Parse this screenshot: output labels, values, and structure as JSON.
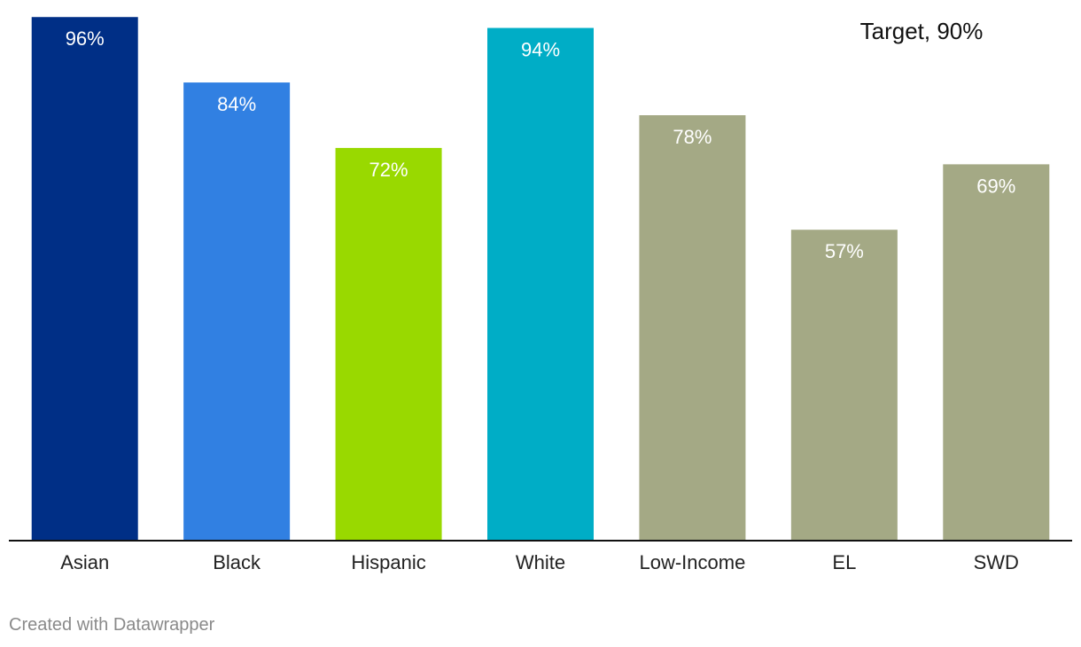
{
  "chart_data": {
    "type": "bar",
    "categories": [
      "Asian",
      "Black",
      "Hispanic",
      "White",
      "Low-Income",
      "EL",
      "SWD"
    ],
    "values": [
      96,
      84,
      72,
      94,
      78,
      57,
      69
    ],
    "value_labels": [
      "96%",
      "84%",
      "72%",
      "94%",
      "78%",
      "57%",
      "69%"
    ],
    "colors": [
      "#002f86",
      "#3180e2",
      "#99d900",
      "#00adc6",
      "#a4a985",
      "#a4a985",
      "#a4a985"
    ],
    "ylim": [
      0,
      97.5
    ],
    "target": {
      "value": 90,
      "label": "Target, 90%"
    },
    "title": "",
    "xlabel": "",
    "ylabel": "",
    "grid": false
  },
  "footer": {
    "credit": "Created with Datawrapper"
  }
}
